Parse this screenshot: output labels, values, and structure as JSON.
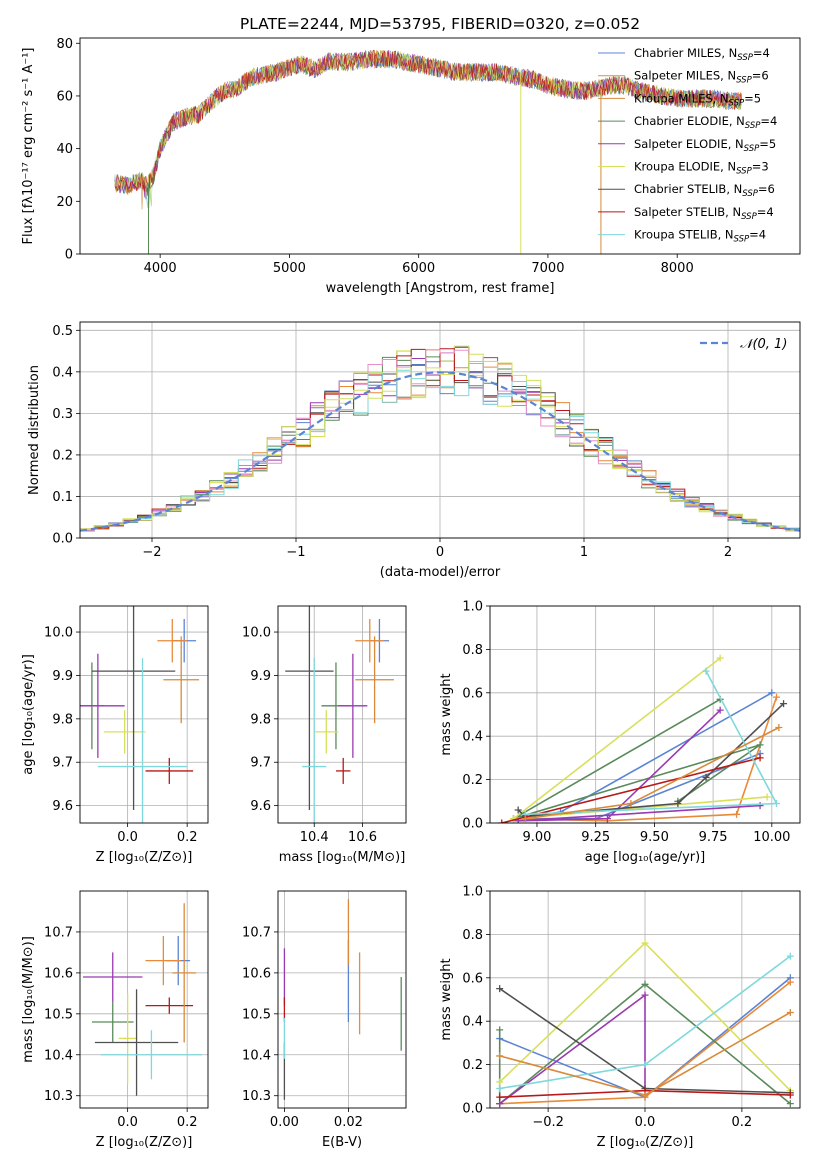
{
  "colors": {
    "series": [
      "#5b84d4",
      "#e88a3a",
      "#d88a3a",
      "#5a8a5a",
      "#9a3ab0",
      "#d8e05a",
      "#505050",
      "#b81818",
      "#7ed8dc"
    ],
    "histogram": [
      "#5b84d4",
      "#e88a3a",
      "#5a8a5a",
      "#9a3ab0",
      "#d8e05a",
      "#505050",
      "#b81818",
      "#e890c8",
      "#7ed8dc",
      "#d0e060"
    ],
    "grid": "#b0b0b0",
    "gaussian": "#5b84d4"
  },
  "chart_data": [
    {
      "id": "spectrum",
      "type": "line",
      "title": "PLATE=2244, MJD=53795, FIBERID=0320, z=0.052",
      "xlabel": "wavelength [Angstrom, rest frame]",
      "ylabel": "Flux [fλ10⁻¹⁷ erg cm⁻² s⁻¹ A⁻¹]",
      "xlim": [
        3380,
        8950
      ],
      "ylim": [
        0,
        82
      ],
      "xticks": [
        4000,
        5000,
        6000,
        7000,
        8000
      ],
      "yticks": [
        0,
        20,
        40,
        60,
        80
      ],
      "grid": false,
      "legend_position": "upper-right",
      "series": [
        {
          "name": "Chabrier MILES, N_SSP=4"
        },
        {
          "name": "Salpeter MILES, N_SSP=6"
        },
        {
          "name": "Kroupa MILES, N_SSP=5"
        },
        {
          "name": "Chabrier ELODIE, N_SSP=4"
        },
        {
          "name": "Salpeter ELODIE, N_SSP=5"
        },
        {
          "name": "Kroupa ELODIE, N_SSP=3"
        },
        {
          "name": "Chabrier STELIB, N_SSP=6"
        },
        {
          "name": "Salpeter STELIB, N_SSP=4"
        },
        {
          "name": "Kroupa STELIB, N_SSP=4"
        }
      ],
      "legend_labels": [
        {
          "pre": "Chabrier MILES, N",
          "sub": "SSP",
          "post": "=4"
        },
        {
          "pre": "Salpeter MILES, N",
          "sub": "SSP",
          "post": "=6"
        },
        {
          "pre": "Kroupa MILES, N",
          "sub": "SSP",
          "post": "=5"
        },
        {
          "pre": "Chabrier ELODIE, N",
          "sub": "SSP",
          "post": "=4"
        },
        {
          "pre": "Salpeter ELODIE, N",
          "sub": "SSP",
          "post": "=5"
        },
        {
          "pre": "Kroupa ELODIE, N",
          "sub": "SSP",
          "post": "=3"
        },
        {
          "pre": "Chabrier STELIB, N",
          "sub": "SSP",
          "post": "=6"
        },
        {
          "pre": "Salpeter STELIB, N",
          "sub": "SSP",
          "post": "=4"
        },
        {
          "pre": "Kroupa STELIB, N",
          "sub": "SSP",
          "post": "=4"
        }
      ],
      "continuum": [
        [
          3650,
          27
        ],
        [
          3750,
          26
        ],
        [
          3850,
          28
        ],
        [
          3900,
          26
        ],
        [
          3950,
          30
        ],
        [
          4000,
          40
        ],
        [
          4100,
          50
        ],
        [
          4200,
          52
        ],
        [
          4300,
          53
        ],
        [
          4400,
          58
        ],
        [
          4500,
          62
        ],
        [
          4600,
          63
        ],
        [
          4700,
          67
        ],
        [
          4800,
          68
        ],
        [
          4900,
          69
        ],
        [
          5000,
          71
        ],
        [
          5100,
          72
        ],
        [
          5200,
          70
        ],
        [
          5300,
          73
        ],
        [
          5400,
          73
        ],
        [
          5500,
          73
        ],
        [
          5600,
          74
        ],
        [
          5700,
          74
        ],
        [
          5800,
          74
        ],
        [
          5900,
          73
        ],
        [
          6000,
          72
        ],
        [
          6100,
          71
        ],
        [
          6200,
          70
        ],
        [
          6300,
          69
        ],
        [
          6400,
          69
        ],
        [
          6500,
          69
        ],
        [
          6600,
          69
        ],
        [
          6700,
          68
        ],
        [
          6800,
          67
        ],
        [
          6900,
          66
        ],
        [
          7000,
          64
        ],
        [
          7100,
          63
        ],
        [
          7200,
          62
        ],
        [
          7300,
          62
        ],
        [
          7400,
          63
        ],
        [
          7500,
          64
        ],
        [
          7600,
          64
        ],
        [
          7700,
          62
        ],
        [
          7800,
          61
        ],
        [
          7900,
          60
        ],
        [
          8000,
          59
        ],
        [
          8100,
          59
        ],
        [
          8200,
          59
        ],
        [
          8300,
          59
        ],
        [
          8400,
          58
        ],
        [
          8500,
          58
        ]
      ],
      "drops": [
        [
          3910,
          0
        ],
        [
          6790,
          0
        ],
        [
          7410,
          0
        ]
      ]
    },
    {
      "id": "residuals",
      "type": "line",
      "xlabel": "(data-model)/error",
      "ylabel": "Normed distribution",
      "xlim": [
        -2.5,
        2.5
      ],
      "ylim": [
        0,
        0.52
      ],
      "xticks": [
        -2,
        -1,
        0,
        1,
        2
      ],
      "yticks": [
        0.0,
        0.1,
        0.2,
        0.3,
        0.4,
        0.5
      ],
      "grid": true,
      "legend_position": "upper-right",
      "legend": "𝒩(0, 1)",
      "bins": 50,
      "histogram_count": 10
    },
    {
      "id": "age-vs-Z",
      "type": "scatter",
      "xlabel": "Z [log₁₀(Z/Z⊙)]",
      "ylabel": "age  [log₁₀(age/yr)]",
      "xlim": [
        -0.16,
        0.27
      ],
      "ylim": [
        9.56,
        10.06
      ],
      "xticks": [
        0.0,
        0.2
      ],
      "yticks": [
        9.6,
        9.7,
        9.8,
        9.9,
        10.0
      ],
      "grid": true,
      "points": [
        {
          "series": 0,
          "x": 0.19,
          "y": 9.98,
          "xerr": 0.04,
          "yerr": 0.05
        },
        {
          "series": 1,
          "x": 0.15,
          "y": 9.98,
          "xerr": 0.05,
          "yerr": 0.05
        },
        {
          "series": 3,
          "x": -0.12,
          "y": 9.83,
          "xerr": 0.04,
          "yerr": 0.1
        },
        {
          "series": 4,
          "x": -0.1,
          "y": 9.83,
          "xerr": 0.09,
          "yerr": 0.12
        },
        {
          "series": 5,
          "x": -0.01,
          "y": 9.77,
          "xerr": 0.07,
          "yerr": 0.05
        },
        {
          "series": 6,
          "x": 0.02,
          "y": 9.91,
          "xerr": 0.14,
          "yerr": 0.32
        },
        {
          "series": 7,
          "x": 0.14,
          "y": 9.68,
          "xerr": 0.08,
          "yerr": 0.03
        },
        {
          "series": 8,
          "x": 0.05,
          "y": 9.69,
          "xerr": 0.15,
          "yerr": 0.25
        },
        {
          "series": 2,
          "x": 0.18,
          "y": 9.89,
          "xerr": 0.06,
          "yerr": 0.1
        }
      ]
    },
    {
      "id": "age-vs-mass",
      "type": "scatter",
      "xlabel": "mass [log₁₀(M/M⊙)]",
      "ylabel": "",
      "xlim": [
        10.25,
        10.78
      ],
      "ylim": [
        9.56,
        10.06
      ],
      "xticks": [
        10.4,
        10.6
      ],
      "yticks": [
        9.6,
        9.7,
        9.8,
        9.9,
        10.0
      ],
      "grid": true,
      "points": [
        {
          "series": 0,
          "x": 10.67,
          "y": 9.98,
          "xerr": 0.04,
          "yerr": 0.05
        },
        {
          "series": 1,
          "x": 10.63,
          "y": 9.98,
          "xerr": 0.06,
          "yerr": 0.05
        },
        {
          "series": 3,
          "x": 10.49,
          "y": 9.83,
          "xerr": 0.06,
          "yerr": 0.1
        },
        {
          "series": 4,
          "x": 10.56,
          "y": 9.83,
          "xerr": 0.06,
          "yerr": 0.12
        },
        {
          "series": 5,
          "x": 10.45,
          "y": 9.77,
          "xerr": 0.05,
          "yerr": 0.05
        },
        {
          "series": 6,
          "x": 10.38,
          "y": 9.91,
          "xerr": 0.1,
          "yerr": 0.32
        },
        {
          "series": 7,
          "x": 10.52,
          "y": 9.68,
          "xerr": 0.03,
          "yerr": 0.03
        },
        {
          "series": 8,
          "x": 10.4,
          "y": 9.69,
          "xerr": 0.05,
          "yerr": 0.25
        },
        {
          "series": 2,
          "x": 10.65,
          "y": 9.89,
          "xerr": 0.08,
          "yerr": 0.1
        }
      ]
    },
    {
      "id": "mass-weight-vs-age",
      "type": "line",
      "xlabel": "age  [log₁₀(age/yr)]",
      "ylabel": "mass weight",
      "xlim": [
        8.8,
        10.12
      ],
      "ylim": [
        0,
        1.0
      ],
      "xticks": [
        9.0,
        9.25,
        9.5,
        9.75,
        10.0
      ],
      "yticks": [
        0.0,
        0.2,
        0.4,
        0.6,
        0.8,
        1.0
      ],
      "grid": true,
      "series_points": [
        {
          "series": 0,
          "points": [
            [
              10.0,
              0.6
            ],
            [
              9.1,
              0.05
            ],
            [
              8.92,
              0.02
            ],
            [
              9.25,
              0.02
            ],
            [
              9.95,
              0.32
            ]
          ]
        },
        {
          "series": 1,
          "points": [
            [
              10.02,
              0.58
            ],
            [
              9.85,
              0.04
            ],
            [
              9.3,
              0.01
            ],
            [
              8.9,
              0.02
            ]
          ]
        },
        {
          "series": 3,
          "points": [
            [
              9.78,
              0.57
            ],
            [
              8.9,
              0.02
            ],
            [
              9.95,
              0.36
            ],
            [
              9.6,
              0.1
            ]
          ]
        },
        {
          "series": 4,
          "points": [
            [
              9.78,
              0.52
            ],
            [
              9.3,
              0.02
            ],
            [
              8.92,
              0.01
            ],
            [
              9.95,
              0.08
            ]
          ]
        },
        {
          "series": 5,
          "points": [
            [
              9.78,
              0.76
            ],
            [
              8.9,
              0.02
            ],
            [
              9.98,
              0.12
            ]
          ]
        },
        {
          "series": 6,
          "points": [
            [
              8.92,
              0.06
            ],
            [
              8.95,
              0.03
            ],
            [
              9.6,
              0.09
            ],
            [
              9.72,
              0.21
            ],
            [
              10.05,
              0.55
            ]
          ]
        },
        {
          "series": 7,
          "points": [
            [
              9.95,
              0.3
            ],
            [
              8.85,
              0.0
            ]
          ]
        },
        {
          "series": 8,
          "points": [
            [
              9.72,
              0.7
            ],
            [
              10.02,
              0.09
            ],
            [
              8.95,
              0.04
            ]
          ]
        },
        {
          "series": 2,
          "points": [
            [
              10.03,
              0.44
            ],
            [
              9.4,
              0.09
            ],
            [
              8.95,
              0.02
            ]
          ]
        }
      ]
    },
    {
      "id": "mass-vs-Z",
      "type": "scatter",
      "xlabel": "Z [log₁₀(Z/Z⊙)]",
      "ylabel": "mass [log₁₀(M/M⊙)]",
      "xlim": [
        -0.16,
        0.27
      ],
      "ylim": [
        10.27,
        10.8
      ],
      "xticks": [
        0.0,
        0.2
      ],
      "yticks": [
        10.3,
        10.4,
        10.5,
        10.6,
        10.7
      ],
      "grid": true,
      "points": [
        {
          "series": 0,
          "x": 0.17,
          "y": 10.63,
          "xerr": 0.04,
          "yerr": 0.06
        },
        {
          "series": 1,
          "x": 0.12,
          "y": 10.63,
          "xerr": 0.06,
          "yerr": 0.06
        },
        {
          "series": 3,
          "x": -0.05,
          "y": 10.48,
          "xerr": 0.07,
          "yerr": 0.05
        },
        {
          "series": 4,
          "x": -0.05,
          "y": 10.59,
          "xerr": 0.1,
          "yerr": 0.06
        },
        {
          "series": 5,
          "x": 0.0,
          "y": 10.44,
          "xerr": 0.03,
          "yerr": 0.11
        },
        {
          "series": 6,
          "x": 0.03,
          "y": 10.43,
          "xerr": 0.14,
          "yerr": 0.13
        },
        {
          "series": 7,
          "x": 0.14,
          "y": 10.52,
          "xerr": 0.08,
          "yerr": 0.02
        },
        {
          "series": 8,
          "x": 0.08,
          "y": 10.4,
          "xerr": 0.17,
          "yerr": 0.06
        },
        {
          "series": 2,
          "x": 0.19,
          "y": 10.6,
          "xerr": 0.04,
          "yerr": 0.17
        }
      ]
    },
    {
      "id": "mass-vs-ebv",
      "type": "scatter",
      "xlabel": "E(B-V)",
      "ylabel": "",
      "xlim": [
        -0.002,
        0.038
      ],
      "ylim": [
        10.27,
        10.8
      ],
      "xticks": [
        0.0,
        0.02
      ],
      "yticks": [
        10.3,
        10.4,
        10.5,
        10.6,
        10.7
      ],
      "grid": true,
      "points": [
        {
          "series": 6,
          "x": 0.0,
          "y": 10.36,
          "xerr": 0.0,
          "yerr": 0.07
        },
        {
          "series": 4,
          "x": 0.0,
          "y": 10.59,
          "xerr": 0.0,
          "yerr": 0.07
        },
        {
          "series": 7,
          "x": 0.0,
          "y": 10.51,
          "xerr": 0.0,
          "yerr": 0.03
        },
        {
          "series": 8,
          "x": 0.0,
          "y": 10.44,
          "xerr": 0.0,
          "yerr": 0.05
        },
        {
          "series": 0,
          "x": 0.02,
          "y": 10.58,
          "xerr": 0.0,
          "yerr": 0.1
        },
        {
          "series": 2,
          "x": 0.02,
          "y": 10.7,
          "xerr": 0.0,
          "yerr": 0.08
        },
        {
          "series": 1,
          "x": 0.0235,
          "y": 10.55,
          "xerr": 0.0,
          "yerr": 0.1
        },
        {
          "series": 3,
          "x": 0.0365,
          "y": 10.5,
          "xerr": 0.0,
          "yerr": 0.09
        }
      ]
    },
    {
      "id": "mass-weight-vs-Z",
      "type": "line",
      "xlabel": "Z [log₁₀(Z/Z⊙)]",
      "ylabel": "mass weight",
      "xlim": [
        -0.32,
        0.32
      ],
      "ylim": [
        0,
        1.0
      ],
      "xticks": [
        -0.2,
        0.0,
        0.2
      ],
      "yticks": [
        0.0,
        0.2,
        0.4,
        0.6,
        0.8,
        1.0
      ],
      "grid": true,
      "series_points": [
        {
          "series": 0,
          "points": [
            [
              -0.3,
              0.32
            ],
            [
              0.0,
              0.05
            ],
            [
              0.3,
              0.6
            ]
          ]
        },
        {
          "series": 1,
          "points": [
            [
              -0.3,
              0.02
            ],
            [
              0.0,
              0.05
            ],
            [
              0.3,
              0.58
            ]
          ]
        },
        {
          "series": 3,
          "points": [
            [
              -0.3,
              0.36
            ],
            [
              -0.3,
              0.02
            ],
            [
              0.0,
              0.57
            ],
            [
              0.3,
              0.02
            ]
          ]
        },
        {
          "series": 4,
          "points": [
            [
              -0.3,
              0.02
            ],
            [
              0.0,
              0.52
            ],
            [
              0.0,
              0.08
            ]
          ]
        },
        {
          "series": 5,
          "points": [
            [
              -0.3,
              0.12
            ],
            [
              0.0,
              0.76
            ],
            [
              0.3,
              0.08
            ]
          ]
        },
        {
          "series": 6,
          "points": [
            [
              -0.3,
              0.55
            ],
            [
              0.0,
              0.09
            ],
            [
              0.3,
              0.07
            ]
          ]
        },
        {
          "series": 7,
          "points": [
            [
              -0.3,
              0.05
            ],
            [
              0.0,
              0.08
            ],
            [
              0.3,
              0.06
            ]
          ]
        },
        {
          "series": 8,
          "points": [
            [
              -0.3,
              0.09
            ],
            [
              0.0,
              0.2
            ],
            [
              0.3,
              0.7
            ]
          ]
        },
        {
          "series": 2,
          "points": [
            [
              -0.3,
              0.24
            ],
            [
              0.0,
              0.06
            ],
            [
              0.3,
              0.44
            ]
          ]
        }
      ]
    }
  ]
}
